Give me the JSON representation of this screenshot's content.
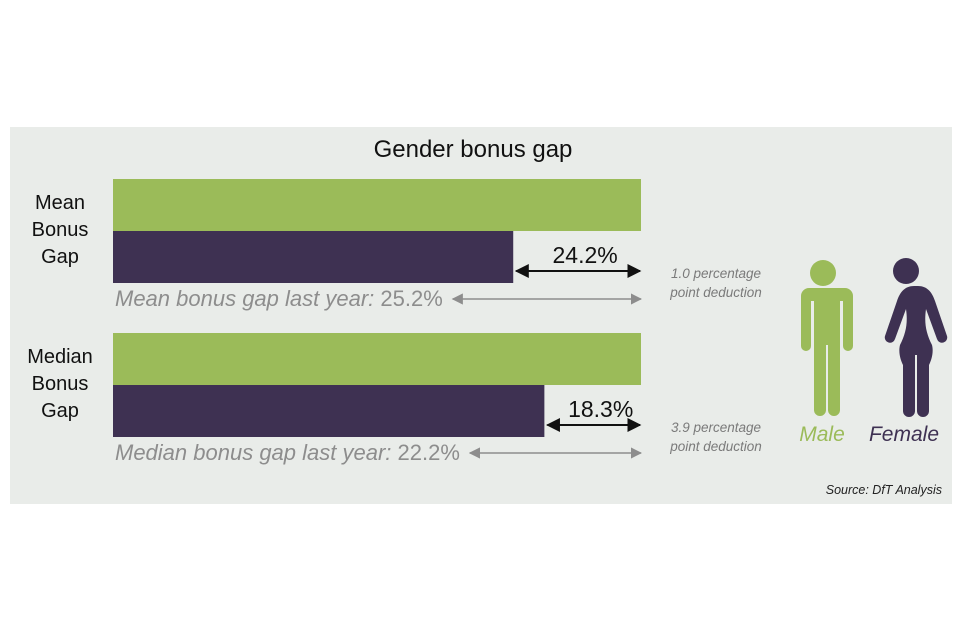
{
  "colors": {
    "male": "#9bbb59",
    "female": "#3e3152",
    "panel": "#e9ece9",
    "black_arrow": "#111111",
    "grey_arrow": "#8d8d8d"
  },
  "chart_data": {
    "type": "bar",
    "orientation": "horizontal",
    "title": "Gender bonus gap",
    "categories": [
      "Mean Bonus Gap",
      "Median Bonus Gap"
    ],
    "category_label_lines": [
      [
        "Mean",
        "Bonus",
        "Gap"
      ],
      [
        "Median",
        "Bonus",
        "Gap"
      ]
    ],
    "series": [
      {
        "name": "Male",
        "values": [
          100,
          100
        ],
        "color": "#9bbb59"
      },
      {
        "name": "Female",
        "values": [
          75.8,
          81.7
        ],
        "color": "#3e3152"
      }
    ],
    "gap_labels": [
      "24.2%",
      "18.3%"
    ],
    "last_year": [
      {
        "label": "Mean bonus gap last year:",
        "value": "25.2%"
      },
      {
        "label": "Median bonus gap last year:",
        "value": "22.2%"
      }
    ],
    "deductions": [
      [
        "1.0 percentage",
        "point deduction"
      ],
      [
        "3.9 percentage",
        "point deduction"
      ]
    ],
    "legend": [
      "Male",
      "Female"
    ],
    "source": "Source: DfT Analysis",
    "grid": false,
    "legend_placement": "right"
  }
}
